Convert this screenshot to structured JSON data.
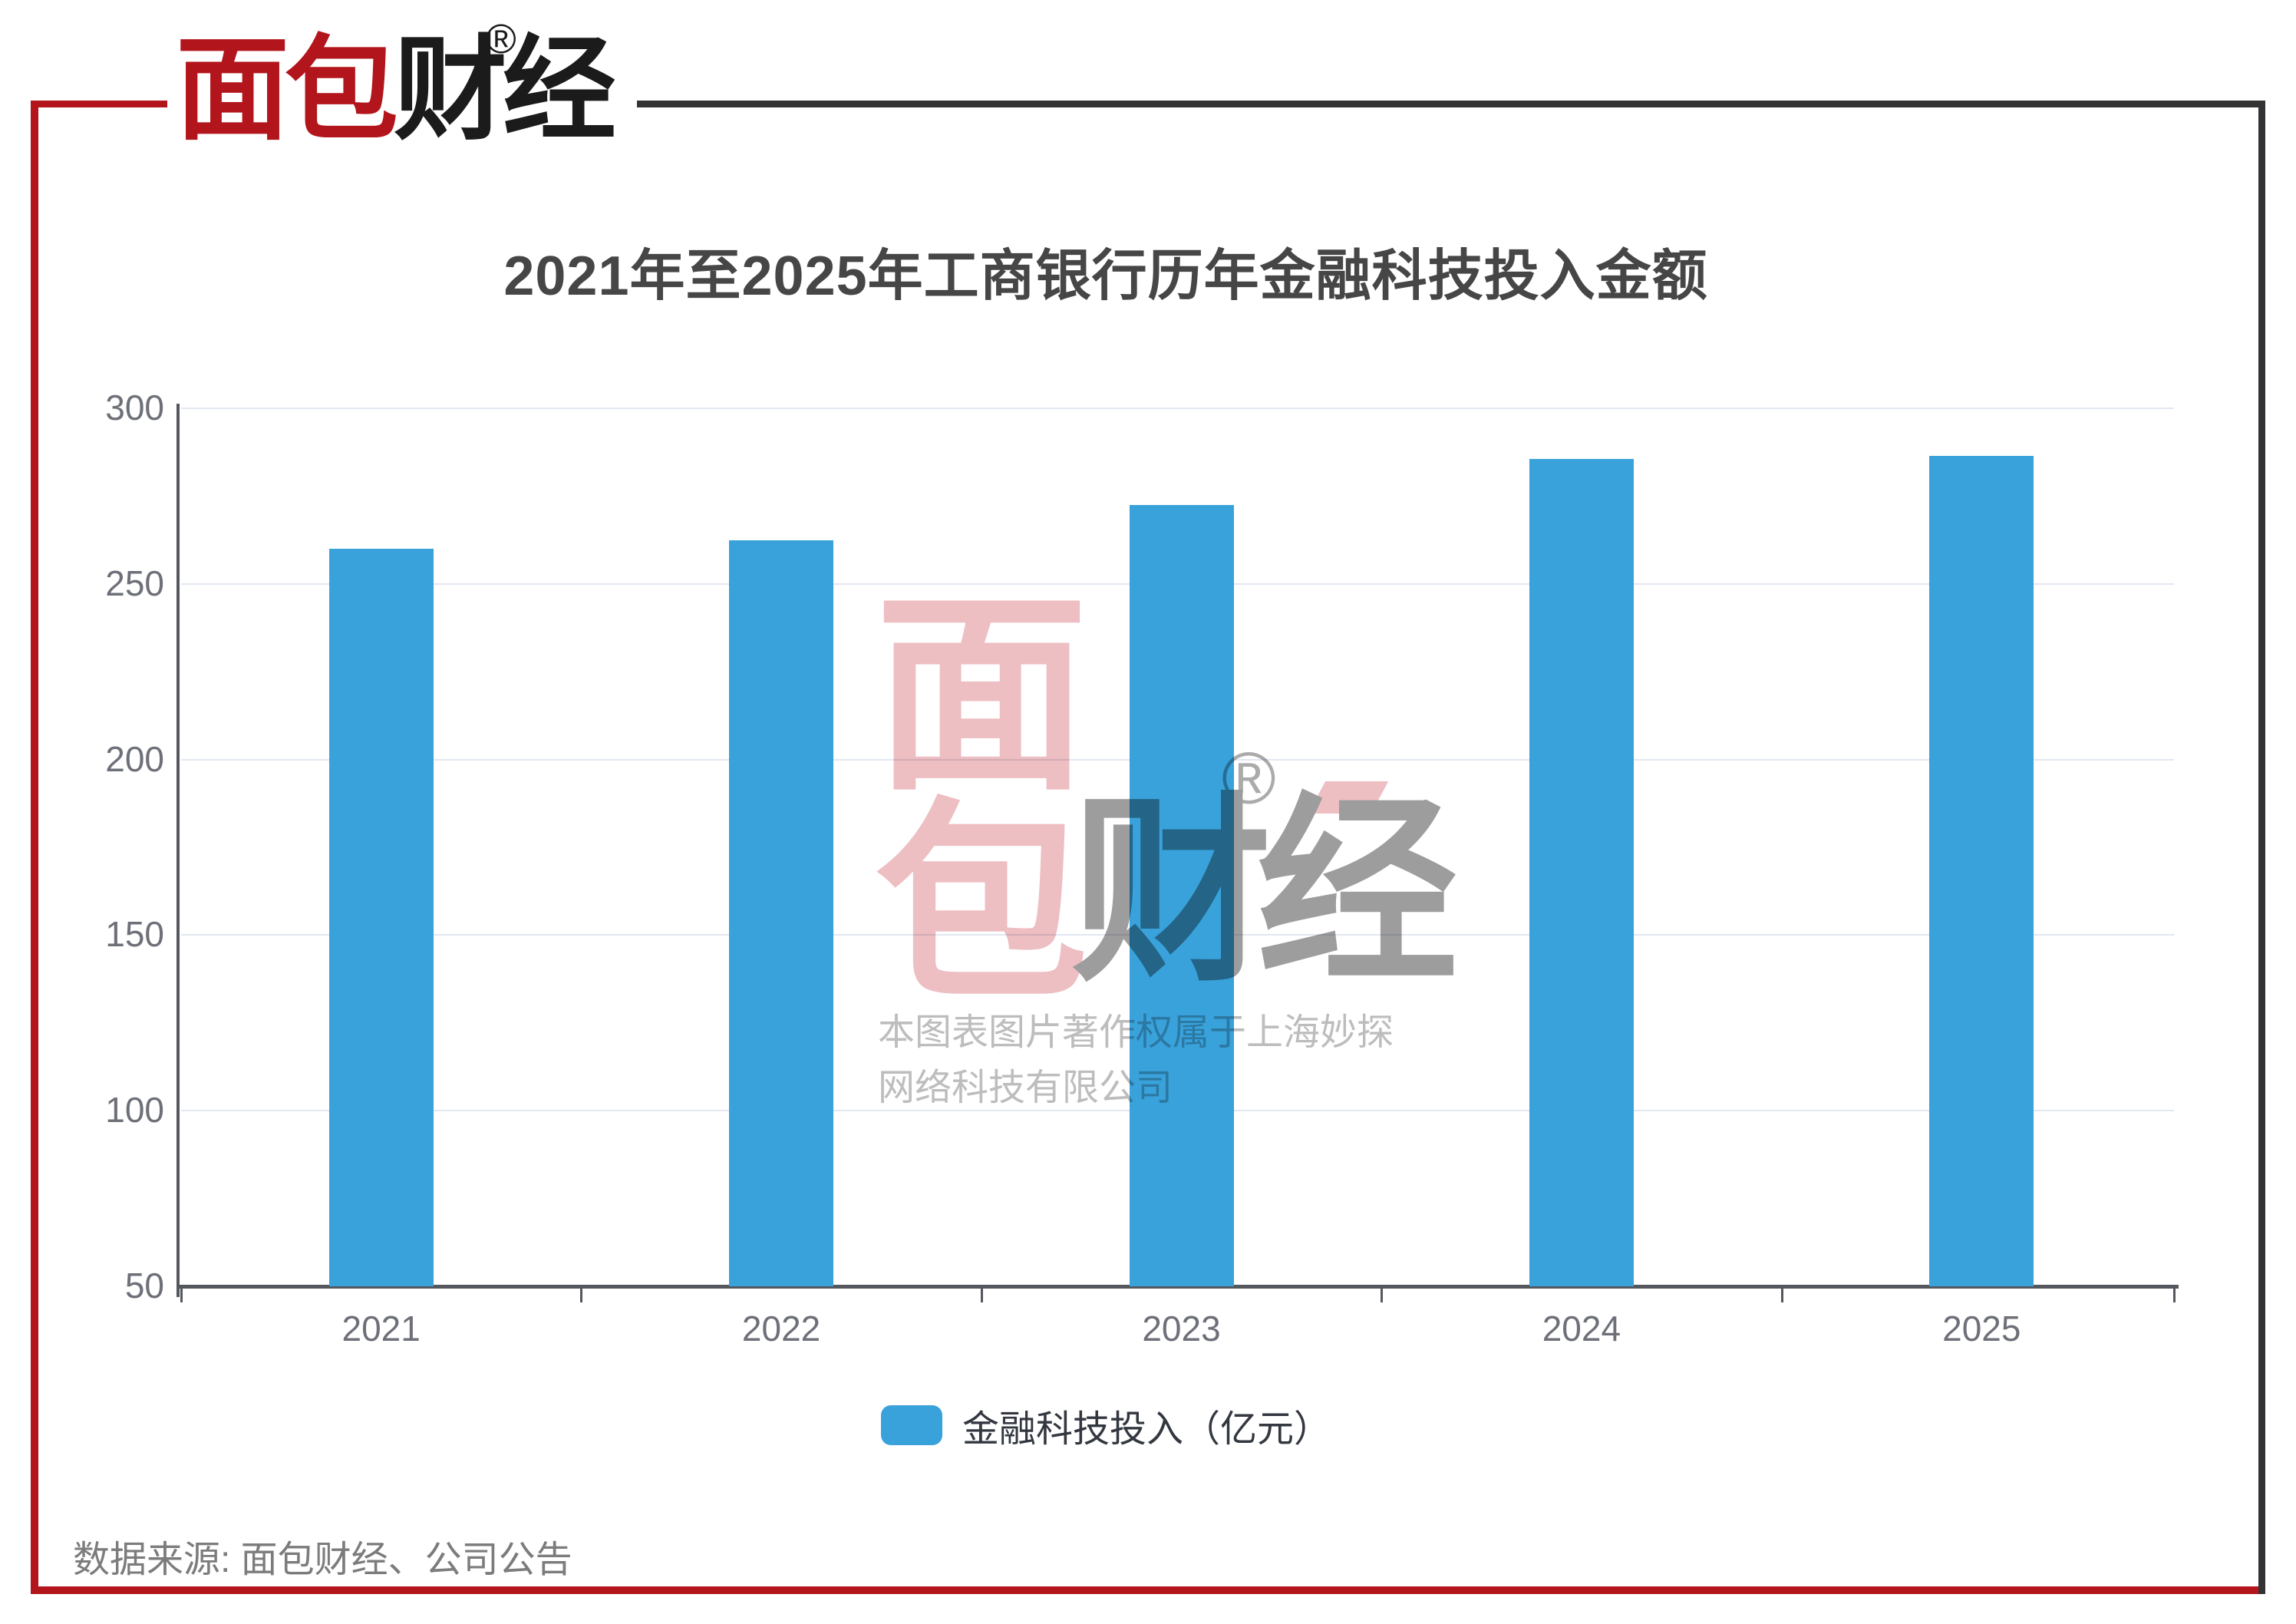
{
  "logo": {
    "brand_red": "面包",
    "brand_black": "财经",
    "registered": "®"
  },
  "chart_data": {
    "type": "bar",
    "title": "2021年至2025年工商银行历年金融科技投入金额",
    "categories": [
      "2021",
      "2022",
      "2023",
      "2024",
      "2025"
    ],
    "series": [
      {
        "name": "金融科技投入（亿元）",
        "values": [
          260,
          262.5,
          272.5,
          285.5,
          286.5
        ]
      }
    ],
    "xlabel": "",
    "ylabel": "",
    "ylim": [
      50,
      300
    ],
    "yticks": [
      50,
      100,
      150,
      200,
      250,
      300
    ],
    "grid": true,
    "legend_position": "bottom",
    "bar_color": "#39a2db"
  },
  "legend": {
    "label": "金融科技投入（亿元）",
    "swatch_color": "#39a2db"
  },
  "watermark": {
    "char_top": "面",
    "char_bottom": "包",
    "brand_gray": "财经",
    "registered": "®",
    "copyright_line1": "本图表图片著作权属于上海妙探",
    "copyright_line2": "网络科技有限公司"
  },
  "footer": {
    "source": "数据来源: 面包财经、公司公告"
  },
  "colors": {
    "accent_red": "#b2151b",
    "frame_dark": "#333336",
    "bar_blue": "#39a2db",
    "gridline": "#e2e7f1",
    "axis": "#54575e",
    "tick_label": "#6e7079",
    "title_text": "#464646",
    "watermark_pink": "#edbec2",
    "watermark_gray": "#9d9d9d",
    "copyright_gray": "#bdbdbd",
    "footer_gray": "#7c7c7c"
  }
}
